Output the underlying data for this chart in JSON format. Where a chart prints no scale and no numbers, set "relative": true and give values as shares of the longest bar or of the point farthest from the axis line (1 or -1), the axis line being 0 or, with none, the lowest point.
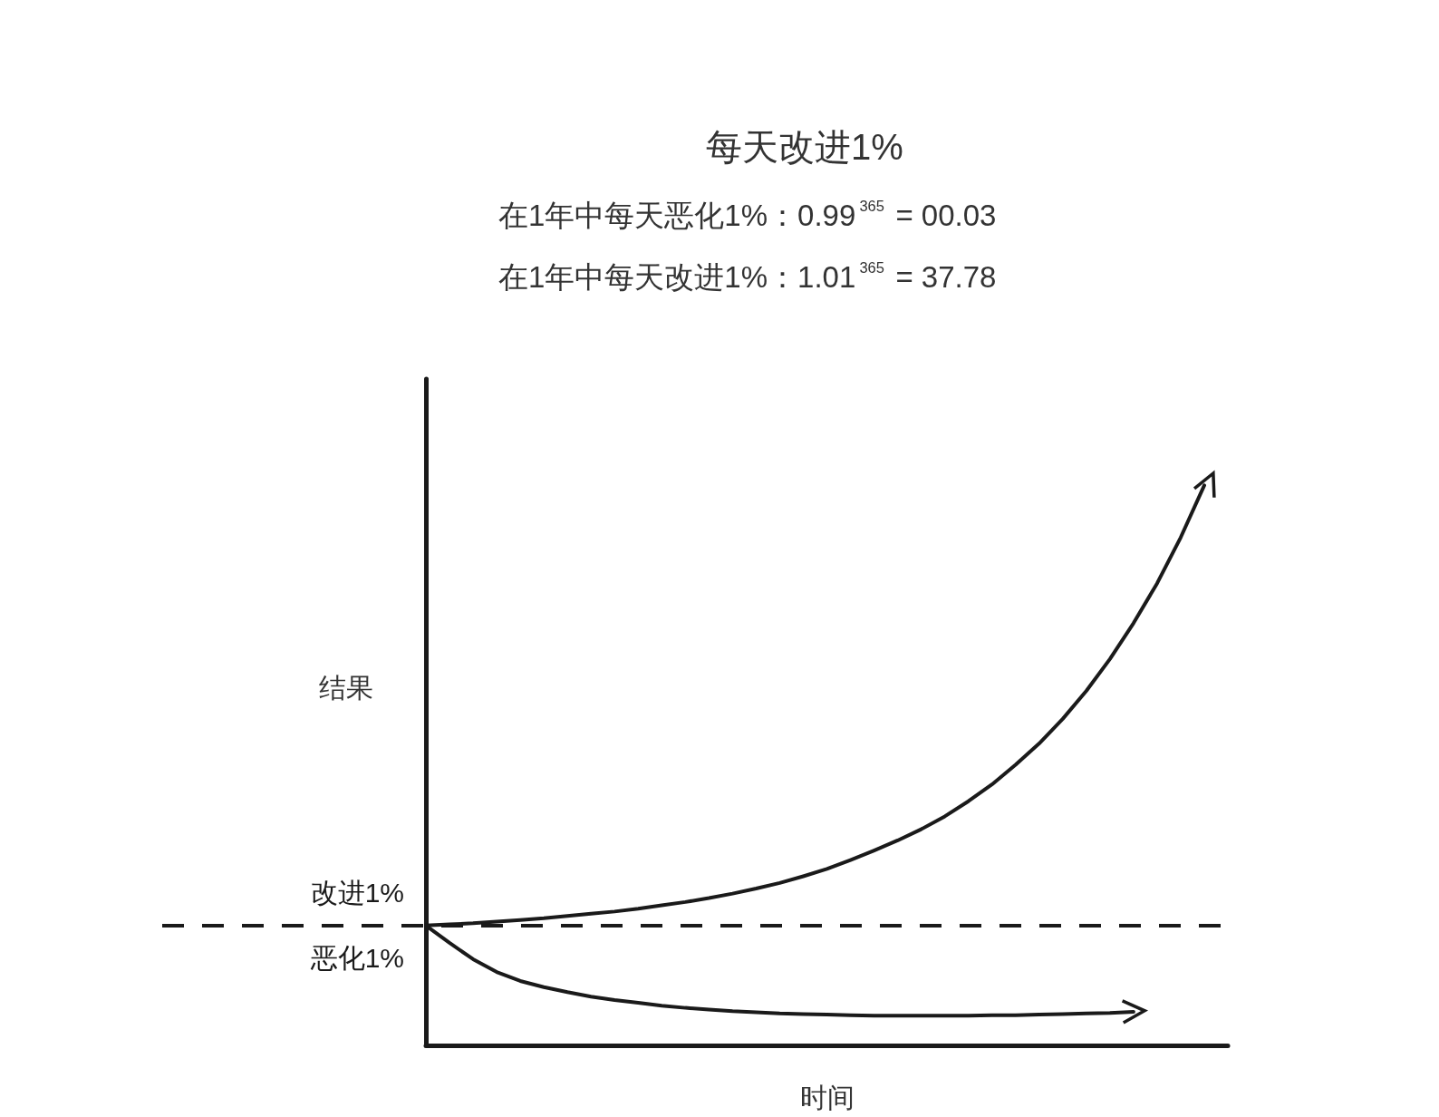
{
  "chart_data": {
    "type": "line",
    "title": "每天改进1%",
    "subtitle": "在1年中每天恶化1%：0.99$^{365}$ = 00.03\n在1年中每天改进1%：1.01$^{365}$ = 37.78",
    "xlabel": "时间",
    "ylabel": "结果",
    "relative": true,
    "categories": [
      null,
      null,
      null,
      null,
      null,
      null,
      null,
      null,
      null,
      null,
      null,
      null,
      null,
      null,
      null,
      null,
      null,
      null,
      null,
      null,
      null,
      null,
      null,
      null,
      null,
      null,
      null,
      null,
      null,
      null,
      null,
      null,
      null,
      null,
      null
    ],
    "series": [
      {
        "name": "改进1%",
        "color": "#1a1a1a",
        "values": [
          0.214,
          0.216,
          0.218,
          0.221,
          0.224,
          0.227,
          0.231,
          0.235,
          0.239,
          0.244,
          0.25,
          0.256,
          0.263,
          0.271,
          0.28,
          0.29,
          0.302,
          0.315,
          0.331,
          0.348,
          0.366,
          0.386,
          0.409,
          0.436,
          0.466,
          0.501,
          0.539,
          0.583,
          0.633,
          0.69,
          0.754,
          0.825,
          0.907,
          1.0,
          null
        ]
      },
      {
        "name": "恶化1%",
        "color": "#1a1a1a",
        "values": [
          0.214,
          0.183,
          0.154,
          0.131,
          0.115,
          0.104,
          0.095,
          0.087,
          0.081,
          0.076,
          0.071,
          0.067,
          0.064,
          0.061,
          0.059,
          0.057,
          0.056,
          0.055,
          0.054,
          0.053,
          0.053,
          0.053,
          0.053,
          0.053,
          0.054,
          0.054,
          0.055,
          0.056,
          0.057,
          0.058,
          0.06,
          null,
          null,
          null,
          null
        ]
      }
    ],
    "ref_lines": [
      {
        "axis": "y",
        "value": 0.214,
        "color": "#1a1a1a",
        "line_style": "dashed"
      }
    ]
  }
}
